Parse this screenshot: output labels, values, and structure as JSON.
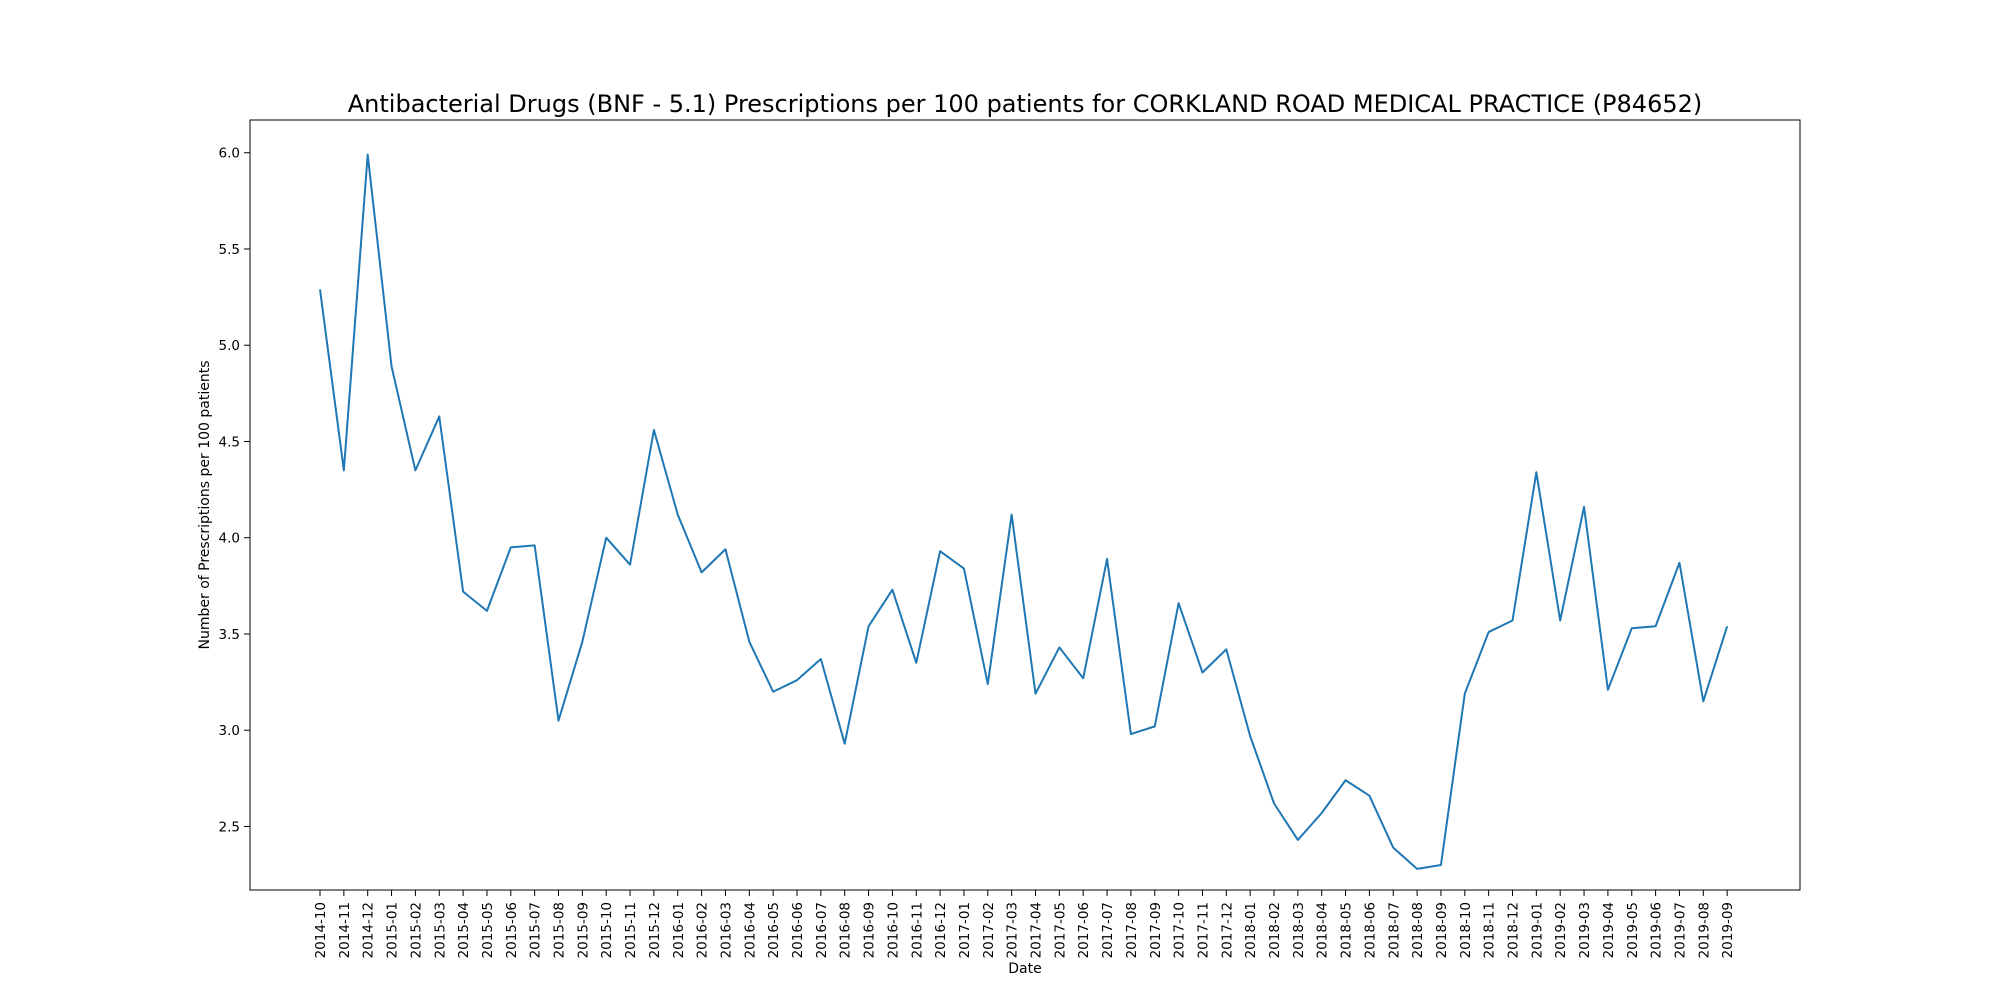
{
  "chart_data": {
    "type": "line",
    "title": "Antibacterial Drugs (BNF - 5.1) Prescriptions per 100 patients for CORKLAND ROAD MEDICAL PRACTICE (P84652)",
    "xlabel": "Date",
    "ylabel": "Number of Prescriptions per 100 patients",
    "ylim": [
      2.17,
      6.17
    ],
    "yticks": [
      "2.5",
      "3.0",
      "3.5",
      "4.0",
      "4.5",
      "5.0",
      "5.5",
      "6.0"
    ],
    "grid": false,
    "line_color": "#1f77b4",
    "x": [
      "2014-10",
      "2014-11",
      "2014-12",
      "2015-01",
      "2015-02",
      "2015-03",
      "2015-04",
      "2015-05",
      "2015-06",
      "2015-07",
      "2015-08",
      "2015-09",
      "2015-10",
      "2015-11",
      "2015-12",
      "2016-01",
      "2016-02",
      "2016-03",
      "2016-04",
      "2016-05",
      "2016-06",
      "2016-07",
      "2016-08",
      "2016-09",
      "2016-10",
      "2016-11",
      "2016-12",
      "2017-01",
      "2017-02",
      "2017-03",
      "2017-04",
      "2017-05",
      "2017-06",
      "2017-07",
      "2017-08",
      "2017-09",
      "2017-10",
      "2017-11",
      "2017-12",
      "2018-01",
      "2018-02",
      "2018-03",
      "2018-04",
      "2018-05",
      "2018-06",
      "2018-07",
      "2018-08",
      "2018-09",
      "2018-10",
      "2018-11",
      "2018-12",
      "2019-01",
      "2019-02",
      "2019-03",
      "2019-04",
      "2019-05",
      "2019-06",
      "2019-07",
      "2019-08",
      "2019-09"
    ],
    "series": [
      {
        "values": [
          5.29,
          4.35,
          5.99,
          4.89,
          4.35,
          4.63,
          3.72,
          3.62,
          3.95,
          3.96,
          3.05,
          3.46,
          4.0,
          3.86,
          4.56,
          4.12,
          3.82,
          3.94,
          3.46,
          3.2,
          3.26,
          3.37,
          2.93,
          3.54,
          3.73,
          3.35,
          3.93,
          3.84,
          3.24,
          4.12,
          3.19,
          3.43,
          3.27,
          3.89,
          2.98,
          3.02,
          3.66,
          3.3,
          3.42,
          2.97,
          2.62,
          2.43,
          2.57,
          2.74,
          2.66,
          2.39,
          2.28,
          2.3,
          3.19,
          3.51,
          3.57,
          4.34,
          3.57,
          4.16,
          3.21,
          3.53,
          3.54,
          3.87,
          3.15,
          3.54
        ]
      }
    ]
  }
}
